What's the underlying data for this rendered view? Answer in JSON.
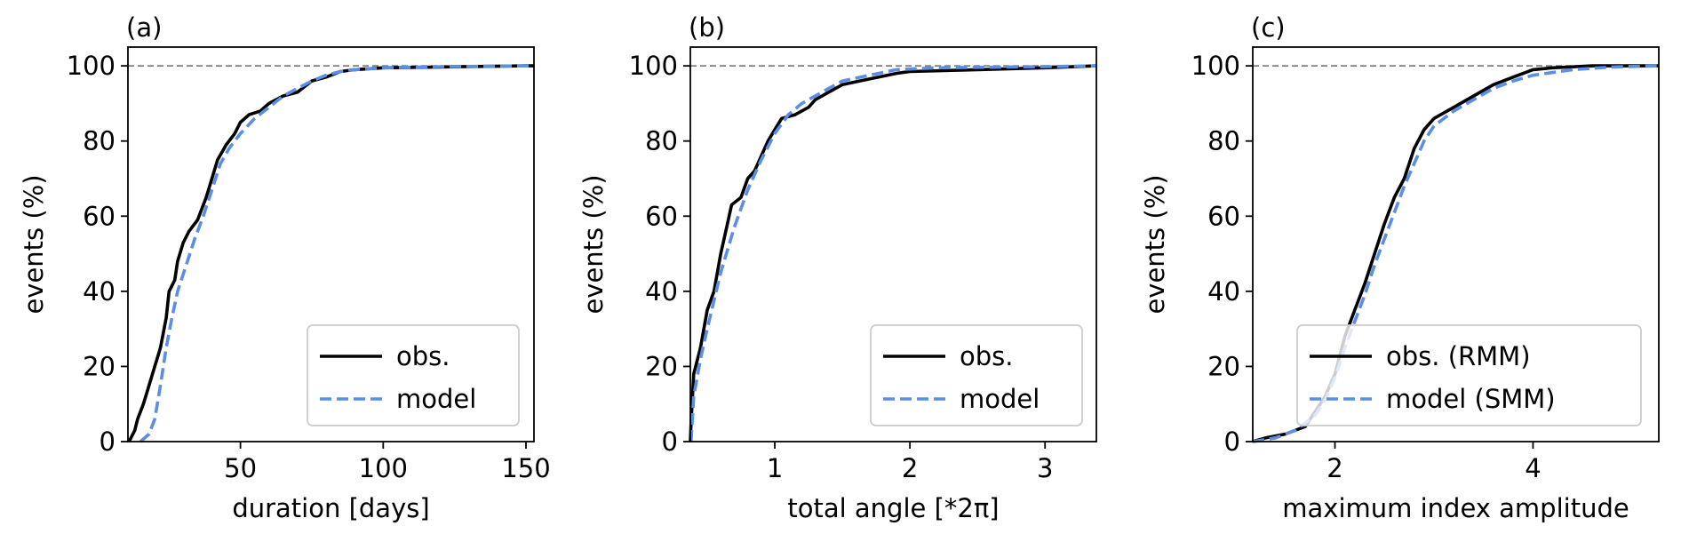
{
  "chart_data": [
    {
      "type": "line",
      "panel_label": "(a)",
      "xlabel": "duration [days]",
      "ylabel": "events (%)",
      "xlim": [
        10.6,
        152.8
      ],
      "ylim": [
        0,
        105
      ],
      "xticks": [
        50,
        100,
        150
      ],
      "yticks": [
        0,
        20,
        40,
        60,
        80,
        100
      ],
      "reference_line": {
        "y": 100,
        "style": "dashed",
        "color": "#808080"
      },
      "legend_placement": "lower-right",
      "series": [
        {
          "name": "obs.",
          "color": "#000000",
          "style": "solid",
          "x": [
            11,
            13,
            14,
            16,
            18,
            20,
            22,
            24,
            25,
            27,
            28,
            30,
            32,
            35,
            38,
            40,
            42,
            45,
            48,
            50,
            53,
            57,
            60,
            65,
            70,
            75,
            80,
            85,
            90,
            100,
            120,
            150,
            152.8
          ],
          "y": [
            0,
            3,
            6,
            10,
            15,
            20,
            25,
            33,
            40,
            43,
            48,
            53,
            56,
            59,
            65,
            70,
            75,
            79,
            82,
            85,
            87,
            88,
            90,
            92,
            93,
            96,
            97,
            98.5,
            99,
            99.5,
            99.7,
            100,
            100
          ]
        },
        {
          "name": "model",
          "color": "#5b8ee6",
          "style": "dashed",
          "x": [
            15,
            18,
            20,
            22,
            24,
            26,
            28,
            31,
            34,
            37,
            40,
            43,
            46,
            50,
            55,
            60,
            65,
            70,
            75,
            80,
            85,
            90,
            100,
            120,
            152.8
          ],
          "y": [
            0,
            2,
            6,
            15,
            25,
            33,
            40,
            47,
            54,
            60,
            67,
            74,
            78,
            82,
            86,
            89,
            92,
            94,
            96,
            97.5,
            98.5,
            99,
            99.5,
            99.8,
            100
          ]
        }
      ]
    },
    {
      "type": "line",
      "panel_label": "(b)",
      "xlabel": "total angle [*2π]",
      "ylabel": "events (%)",
      "xlim": [
        0.375,
        3.38
      ],
      "ylim": [
        0,
        105
      ],
      "xticks": [
        1,
        2,
        3
      ],
      "yticks": [
        0,
        20,
        40,
        60,
        80,
        100
      ],
      "reference_line": {
        "y": 100,
        "style": "dashed",
        "color": "#808080"
      },
      "legend_placement": "lower-right",
      "series": [
        {
          "name": "obs.",
          "color": "#000000",
          "style": "solid",
          "x": [
            0.375,
            0.38,
            0.4,
            0.45,
            0.5,
            0.55,
            0.6,
            0.65,
            0.68,
            0.75,
            0.8,
            0.85,
            0.9,
            0.95,
            1.0,
            1.05,
            1.15,
            1.25,
            1.3,
            1.4,
            1.5,
            1.7,
            1.9,
            2.0,
            2.5,
            3.0,
            3.38
          ],
          "y": [
            0,
            5,
            18,
            25,
            35,
            40,
            50,
            58,
            63,
            65,
            70,
            72,
            76,
            80,
            83,
            86,
            87,
            89,
            91,
            93,
            95,
            96.5,
            98,
            98.5,
            99,
            99.5,
            100
          ]
        },
        {
          "name": "model",
          "color": "#5b8ee6",
          "style": "dashed",
          "x": [
            0.38,
            0.4,
            0.45,
            0.5,
            0.6,
            0.7,
            0.8,
            0.9,
            1.0,
            1.1,
            1.2,
            1.3,
            1.4,
            1.5,
            1.7,
            1.9,
            2.2,
            3.0,
            3.38
          ],
          "y": [
            0,
            12,
            22,
            30,
            45,
            57,
            67,
            75,
            82,
            87,
            90,
            92,
            94,
            96,
            97.5,
            99,
            99.5,
            99.8,
            100
          ]
        }
      ]
    },
    {
      "type": "line",
      "panel_label": "(c)",
      "xlabel": "maximum index amplitude",
      "ylabel": "events (%)",
      "xlim": [
        1.17,
        5.27
      ],
      "ylim": [
        0,
        105
      ],
      "xticks": [
        2,
        4
      ],
      "yticks": [
        0,
        20,
        40,
        60,
        80,
        100
      ],
      "reference_line": {
        "y": 100,
        "style": "dashed",
        "color": "#808080"
      },
      "legend_placement": "lower-right",
      "series": [
        {
          "name": "obs. (RMM)",
          "color": "#000000",
          "style": "solid",
          "x": [
            1.17,
            1.3,
            1.5,
            1.7,
            1.8,
            1.9,
            2.0,
            2.1,
            2.2,
            2.3,
            2.4,
            2.5,
            2.6,
            2.7,
            2.8,
            2.9,
            3.0,
            3.2,
            3.4,
            3.6,
            3.8,
            4.0,
            4.2,
            4.6,
            5.27
          ],
          "y": [
            0,
            1,
            2,
            4,
            8,
            12,
            18,
            28,
            35,
            42,
            50,
            58,
            65,
            70,
            78,
            83,
            86,
            89,
            92,
            95,
            97,
            99,
            99.5,
            100,
            100
          ]
        },
        {
          "name": "model (SMM)",
          "color": "#5b8ee6",
          "style": "dashed",
          "x": [
            1.17,
            1.4,
            1.6,
            1.8,
            1.9,
            2.0,
            2.1,
            2.2,
            2.3,
            2.4,
            2.5,
            2.6,
            2.7,
            2.8,
            2.9,
            3.0,
            3.2,
            3.4,
            3.6,
            3.8,
            4.0,
            4.4,
            4.8,
            5.27
          ],
          "y": [
            0,
            1,
            3,
            7,
            11,
            17,
            25,
            32,
            39,
            47,
            54,
            61,
            68,
            74,
            80,
            84,
            88,
            91,
            94,
            96,
            97.5,
            99,
            99.7,
            100
          ]
        }
      ]
    }
  ]
}
